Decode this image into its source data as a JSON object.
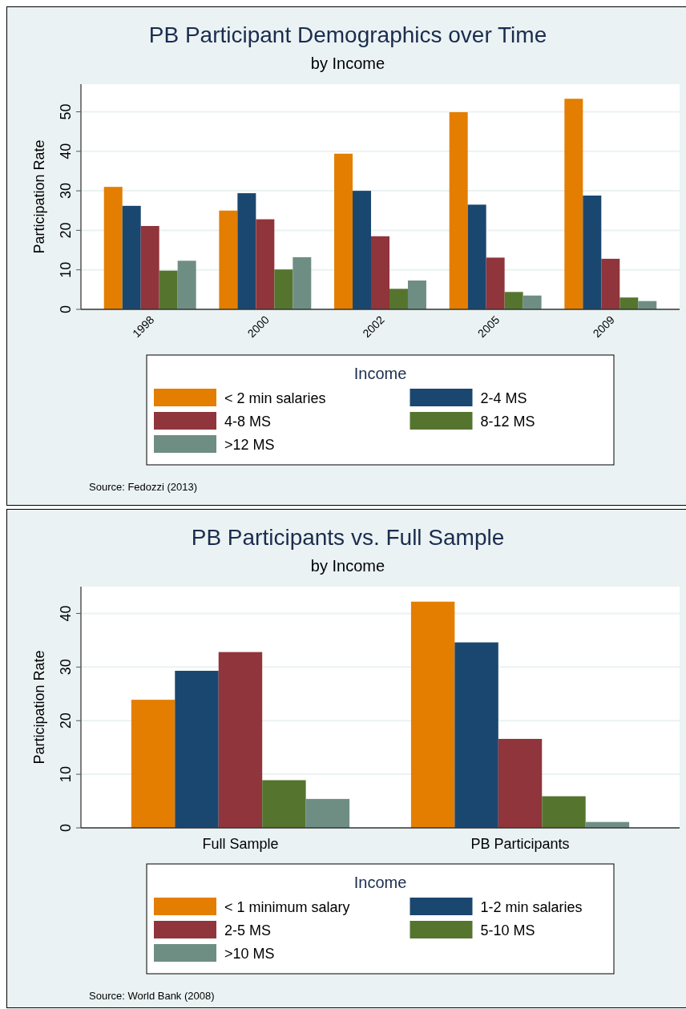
{
  "chart_data": [
    {
      "type": "bar",
      "title": "PB Participant Demographics over Time",
      "subtitle": "by Income",
      "ylabel": "Participation Rate",
      "legend_title": "Income",
      "categories": [
        "1998",
        "2000",
        "2002",
        "2005",
        "2009"
      ],
      "series": [
        {
          "name": "< 2 min salaries",
          "color": "#e37e00",
          "values": [
            31.0,
            25.0,
            39.4,
            49.9,
            53.3
          ]
        },
        {
          "name": "2-4 MS",
          "color": "#1a476f",
          "values": [
            26.2,
            29.4,
            30.0,
            26.5,
            28.8
          ]
        },
        {
          "name": "4-8 MS",
          "color": "#90353b",
          "values": [
            21.1,
            22.8,
            18.5,
            13.1,
            12.8
          ]
        },
        {
          "name": "8-12 MS",
          "color": "#55752f",
          "values": [
            9.8,
            10.1,
            5.2,
            4.4,
            3.0
          ]
        },
        {
          "name": ">12 MS",
          "color": "#6e8e84",
          "values": [
            12.3,
            13.2,
            7.3,
            3.5,
            2.1
          ]
        }
      ],
      "ylim": [
        0,
        57
      ],
      "yticks": [
        0,
        10,
        20,
        30,
        40,
        50
      ],
      "grid": "y",
      "legend": "bottom",
      "annotations": [
        "Source: Fedozzi (2013)"
      ]
    },
    {
      "type": "bar",
      "title": "PB Participants vs. Full Sample",
      "subtitle": "by Income",
      "ylabel": "Participation Rate",
      "legend_title": "Income",
      "categories": [
        "Full Sample",
        "PB Participants"
      ],
      "series": [
        {
          "name": "< 1 minimum salary",
          "color": "#e37e00",
          "values": [
            23.9,
            42.2
          ]
        },
        {
          "name": "1-2 min salaries",
          "color": "#1a476f",
          "values": [
            29.3,
            34.6
          ]
        },
        {
          "name": "2-5 MS",
          "color": "#90353b",
          "values": [
            32.8,
            16.6
          ]
        },
        {
          "name": "5-10 MS",
          "color": "#55752f",
          "values": [
            8.9,
            5.9
          ]
        },
        {
          "name": ">10 MS",
          "color": "#6e8e84",
          "values": [
            5.4,
            1.1
          ]
        }
      ],
      "ylim": [
        0,
        45
      ],
      "yticks": [
        0,
        10,
        20,
        30,
        40
      ],
      "grid": "y",
      "legend": "bottom",
      "annotations": [
        "Source: World Bank (2008)"
      ]
    }
  ]
}
